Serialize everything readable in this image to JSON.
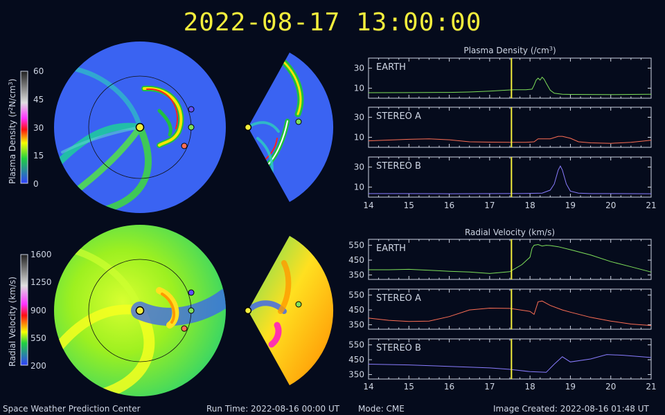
{
  "header": {
    "timestamp": "2022-08-17 13:00:00"
  },
  "footer": {
    "center": "Space Weather Prediction Center",
    "run_time": "Run Time: 2022-08-16 00:00 UT",
    "mode": "Mode: CME",
    "created": "Image Created: 2022-08-16 01:48 UT"
  },
  "colors": {
    "earth": "#7fe05a",
    "stereo_a": "#ff6f55",
    "stereo_b": "#8a7dff",
    "cursor": "#f4ee3c",
    "sun": "#f4ee3c"
  },
  "colorbars": [
    {
      "label": "Plasma Density (r²N/cm³)",
      "label_main": "Plasma Density (r",
      "label_sup1": "2",
      "label_mid": "N/cm",
      "label_sup2": "3",
      "label_end": ")",
      "ticks": [
        "60",
        "45",
        "30",
        "15",
        "0"
      ]
    },
    {
      "label": "Radial Velocity (km/s)",
      "ticks": [
        "1600",
        "1250",
        "900",
        "550",
        "200"
      ]
    }
  ],
  "chart_data": [
    {
      "type": "line",
      "title": "Plasma Density (/cm³)",
      "title_main": "Plasma Density (/cm",
      "title_sup": "3",
      "title_end": ")",
      "x_ticks": [
        "14",
        "15",
        "16",
        "17",
        "18",
        "19",
        "20",
        "21"
      ],
      "xlim": [
        14,
        21
      ],
      "cursor_x": 17.54,
      "panels": [
        {
          "name": "EARTH",
          "ylim": [
            0,
            40
          ],
          "yticks": [
            "30",
            "10"
          ],
          "ytick_values": [
            30,
            10
          ],
          "x": [
            14,
            15,
            16,
            16.5,
            17,
            17.4,
            17.6,
            17.9,
            18.05,
            18.1,
            18.15,
            18.2,
            18.25,
            18.3,
            18.35,
            18.4,
            18.5,
            18.6,
            18.7,
            18.8,
            19,
            20,
            20.5,
            21
          ],
          "y": [
            5.5,
            5.6,
            5.8,
            6.2,
            7,
            8,
            8.5,
            8.5,
            9,
            13,
            18,
            20,
            18,
            21,
            19,
            15,
            8,
            5,
            4.5,
            4,
            3.8,
            3.6,
            3.8,
            4
          ]
        },
        {
          "name": "STEREO A",
          "ylim": [
            0,
            40
          ],
          "yticks": [
            "30",
            "10"
          ],
          "ytick_values": [
            30,
            10
          ],
          "x": [
            14,
            15,
            15.5,
            16,
            16.5,
            17,
            17.5,
            17.9,
            18.1,
            18.2,
            18.3,
            18.5,
            18.7,
            18.8,
            19,
            19.2,
            19.5,
            20,
            20.5,
            21
          ],
          "y": [
            6.5,
            8,
            8.5,
            7.5,
            5.5,
            5.2,
            5,
            5,
            5.5,
            8.5,
            8.5,
            8.5,
            11,
            11,
            9,
            5.5,
            4.5,
            4,
            5,
            7
          ]
        },
        {
          "name": "STEREO B",
          "ylim": [
            0,
            40
          ],
          "yticks": [
            "30",
            "10"
          ],
          "ytick_values": [
            30,
            10
          ],
          "x": [
            14,
            15,
            16,
            17,
            17.8,
            18.3,
            18.5,
            18.6,
            18.7,
            18.75,
            18.8,
            18.9,
            19,
            19.2,
            19.5,
            20,
            21
          ],
          "y": [
            3.5,
            3.5,
            3.4,
            3.5,
            3.6,
            4,
            7,
            13,
            27,
            31,
            27,
            13,
            6,
            4,
            3.5,
            3.5,
            3.4
          ]
        }
      ]
    },
    {
      "type": "line",
      "title": "Radial Velocity (km/s)",
      "x_ticks": [
        "14",
        "15",
        "16",
        "17",
        "18",
        "19",
        "20",
        "21"
      ],
      "xlim": [
        14,
        21
      ],
      "cursor_x": 17.54,
      "panels": [
        {
          "name": "EARTH",
          "ylim": [
            320,
            590
          ],
          "yticks": [
            "550",
            "450",
            "350"
          ],
          "ytick_values": [
            550,
            450,
            350
          ],
          "x": [
            14,
            14.5,
            15,
            15.5,
            16,
            16.5,
            17,
            17.5,
            17.8,
            18,
            18.05,
            18.1,
            18.2,
            18.3,
            18.4,
            18.5,
            18.7,
            19,
            19.5,
            20,
            20.5,
            21
          ],
          "y": [
            385,
            385,
            388,
            382,
            375,
            370,
            360,
            372,
            420,
            470,
            530,
            550,
            555,
            545,
            550,
            548,
            540,
            520,
            485,
            440,
            405,
            370
          ]
        },
        {
          "name": "STEREO A",
          "ylim": [
            320,
            590
          ],
          "yticks": [
            "550",
            "450",
            "350"
          ],
          "ytick_values": [
            550,
            450,
            350
          ],
          "x": [
            14,
            14.5,
            15,
            15.5,
            16,
            16.5,
            17,
            17.5,
            18,
            18.1,
            18.2,
            18.3,
            18.5,
            18.8,
            19,
            19.5,
            20,
            20.5,
            21
          ],
          "y": [
            395,
            380,
            372,
            375,
            405,
            450,
            462,
            460,
            440,
            420,
            505,
            510,
            480,
            450,
            435,
            400,
            375,
            355,
            345
          ]
        },
        {
          "name": "STEREO B",
          "ylim": [
            320,
            590
          ],
          "yticks": [
            "550",
            "450",
            "350"
          ],
          "ytick_values": [
            550,
            450,
            350
          ],
          "x": [
            14,
            15,
            16,
            17,
            17.5,
            18,
            18.4,
            18.6,
            18.8,
            19,
            19.5,
            19.9,
            20.3,
            21
          ],
          "y": [
            420,
            415,
            405,
            395,
            385,
            370,
            365,
            420,
            470,
            435,
            455,
            485,
            480,
            465
          ]
        }
      ]
    }
  ]
}
